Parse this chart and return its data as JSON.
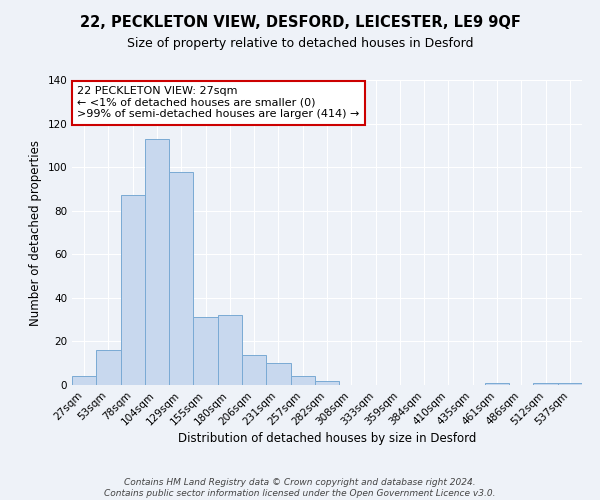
{
  "title": "22, PECKLETON VIEW, DESFORD, LEICESTER, LE9 9QF",
  "subtitle": "Size of property relative to detached houses in Desford",
  "xlabel": "Distribution of detached houses by size in Desford",
  "ylabel": "Number of detached properties",
  "bar_color": "#c8d8ee",
  "bar_edge_color": "#7aaad4",
  "background_color": "#eef2f8",
  "grid_color": "#ffffff",
  "bin_labels": [
    "27sqm",
    "53sqm",
    "78sqm",
    "104sqm",
    "129sqm",
    "155sqm",
    "180sqm",
    "206sqm",
    "231sqm",
    "257sqm",
    "282sqm",
    "308sqm",
    "333sqm",
    "359sqm",
    "384sqm",
    "410sqm",
    "435sqm",
    "461sqm",
    "486sqm",
    "512sqm",
    "537sqm"
  ],
  "bar_heights": [
    4,
    16,
    87,
    113,
    98,
    31,
    32,
    14,
    10,
    4,
    2,
    0,
    0,
    0,
    0,
    0,
    0,
    1,
    0,
    1,
    1
  ],
  "ylim": [
    0,
    140
  ],
  "yticks": [
    0,
    20,
    40,
    60,
    80,
    100,
    120,
    140
  ],
  "annotation_text": "22 PECKLETON VIEW: 27sqm\n← <1% of detached houses are smaller (0)\n>99% of semi-detached houses are larger (414) →",
  "annotation_box_color": "#ffffff",
  "annotation_border_color": "#cc0000",
  "footer_line1": "Contains HM Land Registry data © Crown copyright and database right 2024.",
  "footer_line2": "Contains public sector information licensed under the Open Government Licence v3.0.",
  "title_fontsize": 10.5,
  "subtitle_fontsize": 9,
  "axis_label_fontsize": 8.5,
  "tick_label_fontsize": 7.5,
  "annotation_fontsize": 8,
  "footer_fontsize": 6.5
}
